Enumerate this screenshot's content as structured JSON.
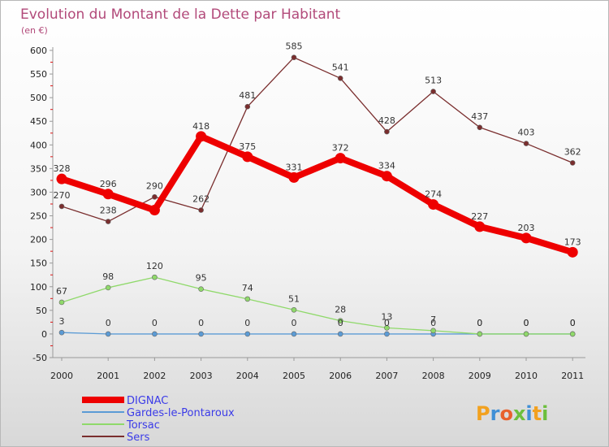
{
  "chart_data": {
    "type": "line",
    "title": "Evolution du Montant de la Dette par Habitant",
    "subtitle": "(en €)",
    "x": [
      "2000",
      "2001",
      "2002",
      "2003",
      "2004",
      "2005",
      "2006",
      "2007",
      "2008",
      "2009",
      "2010",
      "2011"
    ],
    "ylim": [
      -50,
      600
    ],
    "yticks": [
      -50,
      0,
      50,
      100,
      150,
      200,
      250,
      300,
      350,
      400,
      450,
      500,
      550,
      600
    ],
    "grid": false,
    "legend_position": "bottom-left",
    "series": [
      {
        "name": "DIGNAC",
        "color": "#ee0000",
        "values": [
          328,
          296,
          262,
          418,
          375,
          331,
          372,
          334,
          274,
          227,
          203,
          173
        ],
        "labels": [
          "328",
          "296",
          "",
          "418",
          "375",
          "331",
          "372",
          "334",
          "274",
          "227",
          "203",
          "173"
        ]
      },
      {
        "name": "Gardes-le-Pontaroux",
        "color": "#5b9bd5",
        "values": [
          3,
          0,
          0,
          0,
          0,
          0,
          0,
          0,
          0,
          0,
          0,
          0
        ],
        "labels": [
          "3",
          "0",
          "0",
          "0",
          "0",
          "0",
          "0",
          "0",
          "0",
          "0",
          "0",
          "0"
        ]
      },
      {
        "name": "Torsac",
        "color": "#8fd96a",
        "values": [
          67,
          98,
          120,
          95,
          74,
          51,
          28,
          13,
          7,
          0,
          0,
          0
        ],
        "labels": [
          "67",
          "98",
          "120",
          "95",
          "74",
          "51",
          "28",
          "13",
          "7",
          "0",
          "0",
          "0"
        ]
      },
      {
        "name": "Sers",
        "color": "#7a2e2e",
        "values": [
          270,
          238,
          290,
          262,
          481,
          585,
          541,
          428,
          513,
          437,
          403,
          362
        ],
        "labels": [
          "270",
          "238",
          "290",
          "262",
          "481",
          "585",
          "541",
          "428",
          "513",
          "437",
          "403",
          "362"
        ]
      }
    ]
  },
  "logo": {
    "text": "Proxiti"
  }
}
